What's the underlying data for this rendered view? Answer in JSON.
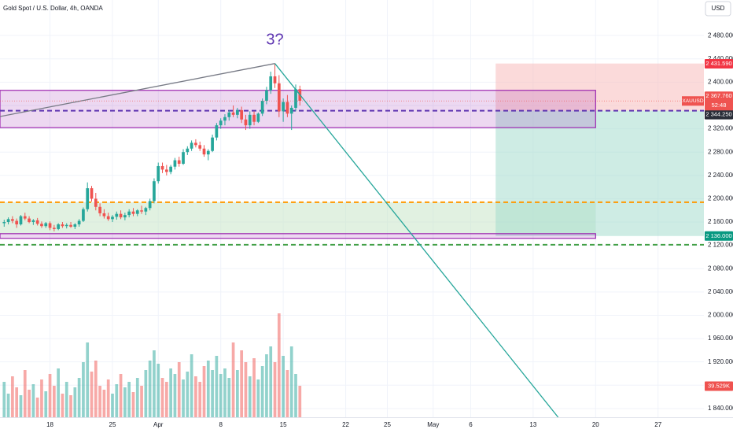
{
  "chart_data": {
    "type": "candlestick",
    "title": "Gold Spot / U.S. Dollar, 4h, OANDA",
    "currency": "USD",
    "candles": [
      [
        2158,
        2164,
        2152,
        2160
      ],
      [
        2160,
        2168,
        2156,
        2165
      ],
      [
        2165,
        2170,
        2158,
        2162
      ],
      [
        2162,
        2166,
        2150,
        2156
      ],
      [
        2156,
        2172,
        2154,
        2170
      ],
      [
        2170,
        2176,
        2163,
        2166
      ],
      [
        2166,
        2170,
        2158,
        2160
      ],
      [
        2160,
        2165,
        2155,
        2163
      ],
      [
        2163,
        2167,
        2154,
        2157
      ],
      [
        2157,
        2161,
        2150,
        2153
      ],
      [
        2153,
        2160,
        2150,
        2158
      ],
      [
        2158,
        2161,
        2146,
        2150
      ],
      [
        2150,
        2155,
        2144,
        2148
      ],
      [
        2148,
        2158,
        2146,
        2156
      ],
      [
        2156,
        2160,
        2150,
        2153
      ],
      [
        2153,
        2158,
        2149,
        2155
      ],
      [
        2155,
        2160,
        2150,
        2152
      ],
      [
        2152,
        2158,
        2148,
        2156
      ],
      [
        2156,
        2165,
        2152,
        2162
      ],
      [
        2162,
        2185,
        2160,
        2182
      ],
      [
        2182,
        2228,
        2178,
        2218
      ],
      [
        2218,
        2222,
        2195,
        2200
      ],
      [
        2200,
        2210,
        2180,
        2186
      ],
      [
        2186,
        2192,
        2170,
        2175
      ],
      [
        2175,
        2182,
        2166,
        2170
      ],
      [
        2170,
        2176,
        2162,
        2165
      ],
      [
        2165,
        2172,
        2160,
        2169
      ],
      [
        2169,
        2178,
        2164,
        2174
      ],
      [
        2174,
        2180,
        2165,
        2168
      ],
      [
        2168,
        2176,
        2163,
        2172
      ],
      [
        2172,
        2182,
        2168,
        2178
      ],
      [
        2178,
        2184,
        2170,
        2174
      ],
      [
        2174,
        2182,
        2170,
        2180
      ],
      [
        2180,
        2188,
        2174,
        2178
      ],
      [
        2178,
        2186,
        2172,
        2184
      ],
      [
        2184,
        2200,
        2180,
        2196
      ],
      [
        2196,
        2235,
        2192,
        2230
      ],
      [
        2230,
        2262,
        2226,
        2256
      ],
      [
        2256,
        2262,
        2244,
        2250
      ],
      [
        2250,
        2258,
        2240,
        2246
      ],
      [
        2246,
        2258,
        2242,
        2255
      ],
      [
        2255,
        2270,
        2250,
        2266
      ],
      [
        2266,
        2272,
        2255,
        2260
      ],
      [
        2260,
        2285,
        2258,
        2280
      ],
      [
        2280,
        2290,
        2275,
        2286
      ],
      [
        2286,
        2300,
        2282,
        2296
      ],
      [
        2296,
        2302,
        2288,
        2292
      ],
      [
        2292,
        2298,
        2282,
        2286
      ],
      [
        2286,
        2292,
        2272,
        2276
      ],
      [
        2276,
        2285,
        2266,
        2282
      ],
      [
        2282,
        2310,
        2280,
        2305
      ],
      [
        2305,
        2330,
        2300,
        2326
      ],
      [
        2326,
        2338,
        2320,
        2334
      ],
      [
        2334,
        2345,
        2326,
        2340
      ],
      [
        2340,
        2352,
        2334,
        2348
      ],
      [
        2348,
        2360,
        2340,
        2344
      ],
      [
        2344,
        2356,
        2338,
        2352
      ],
      [
        2352,
        2358,
        2330,
        2336
      ],
      [
        2336,
        2344,
        2318,
        2326
      ],
      [
        2326,
        2350,
        2320,
        2344
      ],
      [
        2344,
        2350,
        2326,
        2332
      ],
      [
        2332,
        2348,
        2330,
        2346
      ],
      [
        2346,
        2372,
        2342,
        2368
      ],
      [
        2368,
        2392,
        2362,
        2386
      ],
      [
        2386,
        2418,
        2380,
        2410
      ],
      [
        2410,
        2432,
        2390,
        2398
      ],
      [
        2398,
        2412,
        2340,
        2350
      ],
      [
        2350,
        2372,
        2332,
        2366
      ],
      [
        2366,
        2378,
        2340,
        2346
      ],
      [
        2346,
        2360,
        2318,
        2356
      ],
      [
        2356,
        2396,
        2350,
        2388
      ],
      [
        2388,
        2394,
        2360,
        2368
      ]
    ],
    "volumes": [
      45000,
      30000,
      52000,
      38000,
      28000,
      60000,
      35000,
      42000,
      25000,
      48000,
      33000,
      55000,
      40000,
      62000,
      30000,
      45000,
      28000,
      38000,
      50000,
      70000,
      95000,
      58000,
      72000,
      40000,
      35000,
      48000,
      30000,
      42000,
      55000,
      38000,
      45000,
      32000,
      50000,
      40000,
      60000,
      72000,
      85000,
      68000,
      50000,
      45000,
      62000,
      55000,
      70000,
      48000,
      58000,
      80000,
      52000,
      45000,
      65000,
      72000,
      60000,
      78000,
      55000,
      62000,
      50000,
      95000,
      60000,
      85000,
      70000,
      52000,
      75000,
      48000,
      65000,
      80000,
      90000,
      70000,
      132000,
      78000,
      60000,
      90000,
      55000,
      40000
    ],
    "xlim": [
      0,
      169
    ],
    "xticks": [
      {
        "value": 12,
        "label": "18"
      },
      {
        "value": 27,
        "label": "25"
      },
      {
        "value": 38,
        "label": "Apr"
      },
      {
        "value": 53,
        "label": "8"
      },
      {
        "value": 68,
        "label": "15"
      },
      {
        "value": 83,
        "label": "22"
      },
      {
        "value": 93,
        "label": "25"
      },
      {
        "value": 104,
        "label": "May"
      },
      {
        "value": 113,
        "label": "6"
      },
      {
        "value": 128,
        "label": "13"
      },
      {
        "value": 143,
        "label": "20"
      },
      {
        "value": 158,
        "label": "27"
      }
    ],
    "ylim": [
      1825,
      2541
    ],
    "yticks": [
      {
        "value": 1840,
        "label": "1 840.000"
      },
      {
        "value": 1880,
        "label": "1 880.000"
      },
      {
        "value": 1920,
        "label": "1 920.000"
      },
      {
        "value": 1960,
        "label": "1 960.000"
      },
      {
        "value": 2000,
        "label": "2 000.000"
      },
      {
        "value": 2040,
        "label": "2 040.000"
      },
      {
        "value": 2080,
        "label": "2 080.000"
      },
      {
        "value": 2120,
        "label": "2 120.000"
      },
      {
        "value": 2160,
        "label": "2 160.000"
      },
      {
        "value": 2200,
        "label": "2 200.000"
      },
      {
        "value": 2240,
        "label": "2 240.000"
      },
      {
        "value": 2280,
        "label": "2 280.000"
      },
      {
        "value": 2320,
        "label": "2 320.000"
      },
      {
        "value": 2360,
        "label": "2 360.000"
      },
      {
        "value": 2400,
        "label": "2 400.000"
      },
      {
        "value": 2440,
        "label": "2 440.000"
      },
      {
        "value": 2480,
        "label": "2 480.000"
      }
    ],
    "vlim": [
      0,
      180000
    ],
    "up_color": "#26a69a",
    "down_color": "#ef5350",
    "grid": true,
    "boxes": [
      {
        "x": [
          0,
          143
        ],
        "price": [
          2322,
          2386
        ],
        "color": "#9c27b0"
      },
      {
        "x": [
          0,
          143
        ],
        "price": [
          2132,
          2140
        ],
        "color": "#9c27b0"
      }
    ],
    "zones": [
      {
        "x": [
          0,
          143
        ],
        "price": [
          2140,
          2194
        ],
        "color": "#c8e6c9"
      },
      {
        "x": [
          119,
          169
        ],
        "price": [
          2351,
          2432
        ],
        "color": "#f8bbbb"
      },
      {
        "x": [
          119,
          169
        ],
        "price": [
          2136,
          2351
        ],
        "color": "#a5dccd"
      }
    ],
    "levels": [
      {
        "price": 2351,
        "color": "#5e35b1"
      },
      {
        "price": 2194,
        "color": "#ff9800"
      },
      {
        "price": 2121,
        "color": "#43a047"
      }
    ],
    "trendlines": [
      {
        "x": [
          0,
          66
        ],
        "price": [
          2341,
          2432
        ],
        "color": "#787b86"
      },
      {
        "x": [
          66,
          134
        ],
        "price": [
          2432,
          1825
        ],
        "color": "#26a69a"
      }
    ],
    "annotation": {
      "text": "3?",
      "x": 66,
      "price": 2472
    },
    "price_tags": [
      {
        "value": 2431.59,
        "label": "2 431.590",
        "color": "#f23645"
      },
      {
        "value": 2344.25,
        "label": "2 344.250",
        "color": "#2a2e39"
      },
      {
        "value": 2136,
        "label": "2 136.000",
        "color": "#089981"
      }
    ],
    "current": {
      "symbol": "XAUUSD",
      "value": 2367.76,
      "label": "2 367.760",
      "countdown": "52:48"
    },
    "volume_tag": {
      "value": 39529,
      "label": "39.529K"
    }
  }
}
